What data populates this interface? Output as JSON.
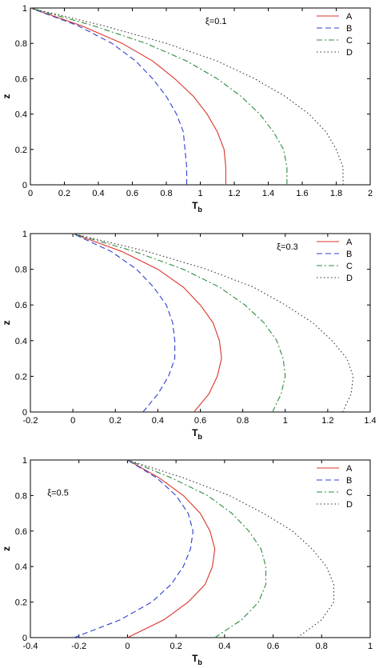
{
  "chart_data": [
    {
      "type": "line",
      "xlabel": "T",
      "xlabel_sub": "b",
      "ylabel": "z",
      "xlim": [
        0,
        2
      ],
      "ylim": [
        0,
        1
      ],
      "x_ticks": [
        "0",
        "0.2",
        "0.4",
        "0.6",
        "0.8",
        "1",
        "1.2",
        "1.4",
        "1.6",
        "1.8",
        "2"
      ],
      "y_ticks": [
        "0",
        "0.2",
        "0.4",
        "0.6",
        "0.8",
        "1"
      ],
      "annotation": {
        "text": "ξ=0.1",
        "at": [
          1.03,
          0.91
        ]
      },
      "legend": "top-right",
      "series": [
        {
          "name": "A",
          "color": "#d9342b",
          "dash": "solid",
          "points": [
            [
              1.15,
              0.0
            ],
            [
              1.15,
              0.1
            ],
            [
              1.14,
              0.2
            ],
            [
              1.1,
              0.3
            ],
            [
              1.04,
              0.4
            ],
            [
              0.96,
              0.5
            ],
            [
              0.85,
              0.6
            ],
            [
              0.72,
              0.7
            ],
            [
              0.54,
              0.8
            ],
            [
              0.3,
              0.9
            ],
            [
              0.0,
              1.0
            ]
          ]
        },
        {
          "name": "B",
          "color": "#2f3fd1",
          "dash": "dashed",
          "points": [
            [
              0.92,
              0.0
            ],
            [
              0.92,
              0.1
            ],
            [
              0.91,
              0.2
            ],
            [
              0.9,
              0.3
            ],
            [
              0.86,
              0.4
            ],
            [
              0.8,
              0.5
            ],
            [
              0.72,
              0.6
            ],
            [
              0.62,
              0.7
            ],
            [
              0.48,
              0.8
            ],
            [
              0.28,
              0.9
            ],
            [
              0.0,
              1.0
            ]
          ]
        },
        {
          "name": "C",
          "color": "#2e8b3e",
          "dash": "dashdot",
          "points": [
            [
              1.51,
              0.0
            ],
            [
              1.51,
              0.1
            ],
            [
              1.49,
              0.2
            ],
            [
              1.43,
              0.3
            ],
            [
              1.35,
              0.4
            ],
            [
              1.24,
              0.5
            ],
            [
              1.1,
              0.6
            ],
            [
              0.92,
              0.7
            ],
            [
              0.68,
              0.8
            ],
            [
              0.37,
              0.9
            ],
            [
              0.0,
              1.0
            ]
          ]
        },
        {
          "name": "D",
          "color": "#333333",
          "dash": "dotted",
          "points": [
            [
              1.84,
              0.0
            ],
            [
              1.84,
              0.1
            ],
            [
              1.8,
              0.2
            ],
            [
              1.74,
              0.3
            ],
            [
              1.64,
              0.4
            ],
            [
              1.5,
              0.5
            ],
            [
              1.32,
              0.6
            ],
            [
              1.1,
              0.7
            ],
            [
              0.8,
              0.8
            ],
            [
              0.43,
              0.9
            ],
            [
              0.0,
              1.0
            ]
          ]
        }
      ]
    },
    {
      "type": "line",
      "xlabel": "T",
      "xlabel_sub": "b",
      "ylabel": "z",
      "xlim": [
        -0.2,
        1.4
      ],
      "ylim": [
        0,
        1
      ],
      "x_ticks": [
        "-0.2",
        "0",
        "0.2",
        "0.4",
        "0.6",
        "0.8",
        "1",
        "1.2",
        "1.4"
      ],
      "y_ticks": [
        "0",
        "0.2",
        "0.4",
        "0.6",
        "0.8",
        "1"
      ],
      "annotation": {
        "text": "ξ=0.3",
        "at": [
          0.96,
          0.91
        ]
      },
      "legend": "top-right",
      "series": [
        {
          "name": "A",
          "color": "#d9342b",
          "dash": "solid",
          "points": [
            [
              0.57,
              0.0
            ],
            [
              0.64,
              0.1
            ],
            [
              0.68,
              0.2
            ],
            [
              0.7,
              0.3
            ],
            [
              0.69,
              0.4
            ],
            [
              0.66,
              0.5
            ],
            [
              0.6,
              0.6
            ],
            [
              0.52,
              0.7
            ],
            [
              0.4,
              0.8
            ],
            [
              0.23,
              0.9
            ],
            [
              0.0,
              1.0
            ]
          ]
        },
        {
          "name": "B",
          "color": "#2f3fd1",
          "dash": "dashed",
          "points": [
            [
              0.33,
              0.0
            ],
            [
              0.4,
              0.1
            ],
            [
              0.45,
              0.2
            ],
            [
              0.48,
              0.3
            ],
            [
              0.48,
              0.4
            ],
            [
              0.47,
              0.5
            ],
            [
              0.44,
              0.6
            ],
            [
              0.38,
              0.7
            ],
            [
              0.3,
              0.8
            ],
            [
              0.18,
              0.9
            ],
            [
              0.0,
              1.0
            ]
          ]
        },
        {
          "name": "C",
          "color": "#2e8b3e",
          "dash": "dashdot",
          "points": [
            [
              0.94,
              0.0
            ],
            [
              0.98,
              0.1
            ],
            [
              1.0,
              0.2
            ],
            [
              0.99,
              0.3
            ],
            [
              0.96,
              0.4
            ],
            [
              0.9,
              0.5
            ],
            [
              0.81,
              0.6
            ],
            [
              0.69,
              0.7
            ],
            [
              0.52,
              0.8
            ],
            [
              0.29,
              0.9
            ],
            [
              0.0,
              1.0
            ]
          ]
        },
        {
          "name": "D",
          "color": "#333333",
          "dash": "dotted",
          "points": [
            [
              1.27,
              0.0
            ],
            [
              1.31,
              0.1
            ],
            [
              1.32,
              0.2
            ],
            [
              1.29,
              0.3
            ],
            [
              1.22,
              0.4
            ],
            [
              1.13,
              0.5
            ],
            [
              1.0,
              0.6
            ],
            [
              0.85,
              0.7
            ],
            [
              0.63,
              0.8
            ],
            [
              0.35,
              0.9
            ],
            [
              0.0,
              1.0
            ]
          ]
        }
      ]
    },
    {
      "type": "line",
      "xlabel": "T",
      "xlabel_sub": "b",
      "ylabel": "z",
      "xlim": [
        -0.4,
        1.0
      ],
      "ylim": [
        0,
        1
      ],
      "x_ticks": [
        "-0.4",
        "-0.2",
        "0",
        "0.2",
        "0.4",
        "0.6",
        "0.8",
        "1"
      ],
      "y_ticks": [
        "0",
        "0.2",
        "0.4",
        "0.6",
        "0.8",
        "1"
      ],
      "annotation": {
        "text": "ξ=0.5",
        "at": [
          -0.33,
          0.8
        ]
      },
      "legend": "top-right",
      "series": [
        {
          "name": "A",
          "color": "#d9342b",
          "dash": "solid",
          "points": [
            [
              0.0,
              0.0
            ],
            [
              0.15,
              0.1
            ],
            [
              0.25,
              0.2
            ],
            [
              0.32,
              0.3
            ],
            [
              0.35,
              0.4
            ],
            [
              0.36,
              0.5
            ],
            [
              0.34,
              0.6
            ],
            [
              0.3,
              0.7
            ],
            [
              0.23,
              0.8
            ],
            [
              0.13,
              0.9
            ],
            [
              0.0,
              1.0
            ]
          ]
        },
        {
          "name": "B",
          "color": "#2f3fd1",
          "dash": "dashed",
          "points": [
            [
              -0.22,
              0.0
            ],
            [
              -0.03,
              0.1
            ],
            [
              0.1,
              0.2
            ],
            [
              0.18,
              0.3
            ],
            [
              0.23,
              0.4
            ],
            [
              0.26,
              0.5
            ],
            [
              0.27,
              0.6
            ],
            [
              0.25,
              0.7
            ],
            [
              0.2,
              0.8
            ],
            [
              0.12,
              0.9
            ],
            [
              0.0,
              1.0
            ]
          ]
        },
        {
          "name": "C",
          "color": "#2e8b3e",
          "dash": "dashdot",
          "points": [
            [
              0.36,
              0.0
            ],
            [
              0.47,
              0.1
            ],
            [
              0.54,
              0.2
            ],
            [
              0.57,
              0.3
            ],
            [
              0.57,
              0.4
            ],
            [
              0.55,
              0.5
            ],
            [
              0.5,
              0.6
            ],
            [
              0.43,
              0.7
            ],
            [
              0.33,
              0.8
            ],
            [
              0.18,
              0.9
            ],
            [
              0.0,
              1.0
            ]
          ]
        },
        {
          "name": "D",
          "color": "#333333",
          "dash": "dotted",
          "points": [
            [
              0.7,
              0.0
            ],
            [
              0.8,
              0.1
            ],
            [
              0.85,
              0.2
            ],
            [
              0.85,
              0.3
            ],
            [
              0.82,
              0.4
            ],
            [
              0.76,
              0.5
            ],
            [
              0.68,
              0.6
            ],
            [
              0.56,
              0.7
            ],
            [
              0.42,
              0.8
            ],
            [
              0.23,
              0.9
            ],
            [
              0.0,
              1.0
            ]
          ]
        }
      ]
    }
  ]
}
